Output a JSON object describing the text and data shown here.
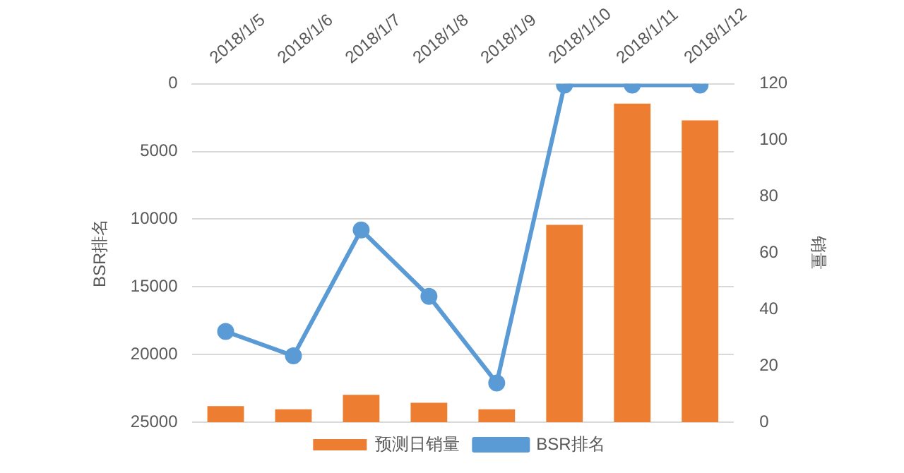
{
  "chart_data": {
    "type": "bar",
    "categories": [
      "2018/1/5",
      "2018/1/6",
      "2018/1/7",
      "2018/1/8",
      "2018/1/9",
      "2018/1/10",
      "2018/1/11",
      "2018/1/12"
    ],
    "ylabel": "BSR排名",
    "y2label": "销量",
    "ylim": [
      25000,
      0
    ],
    "yticks": [
      0,
      5000,
      10000,
      15000,
      20000,
      25000
    ],
    "y2lim": [
      0,
      120
    ],
    "y2ticks": [
      0,
      20,
      40,
      60,
      80,
      100,
      120
    ],
    "series": [
      {
        "name": "预测日销量",
        "axis": "y2",
        "color": "#ed7d31",
        "values": [
          5.7,
          4.6,
          9.7,
          6.9,
          4.6,
          70,
          113,
          107
        ]
      },
      {
        "name": "BSR排名",
        "type": "line",
        "axis": "y",
        "color": "#5b9bd5",
        "values": [
          18300,
          20100,
          10800,
          15700,
          22100,
          100,
          100,
          100
        ]
      }
    ],
    "grid": "y",
    "legend": "bottom",
    "marker": "circle"
  }
}
